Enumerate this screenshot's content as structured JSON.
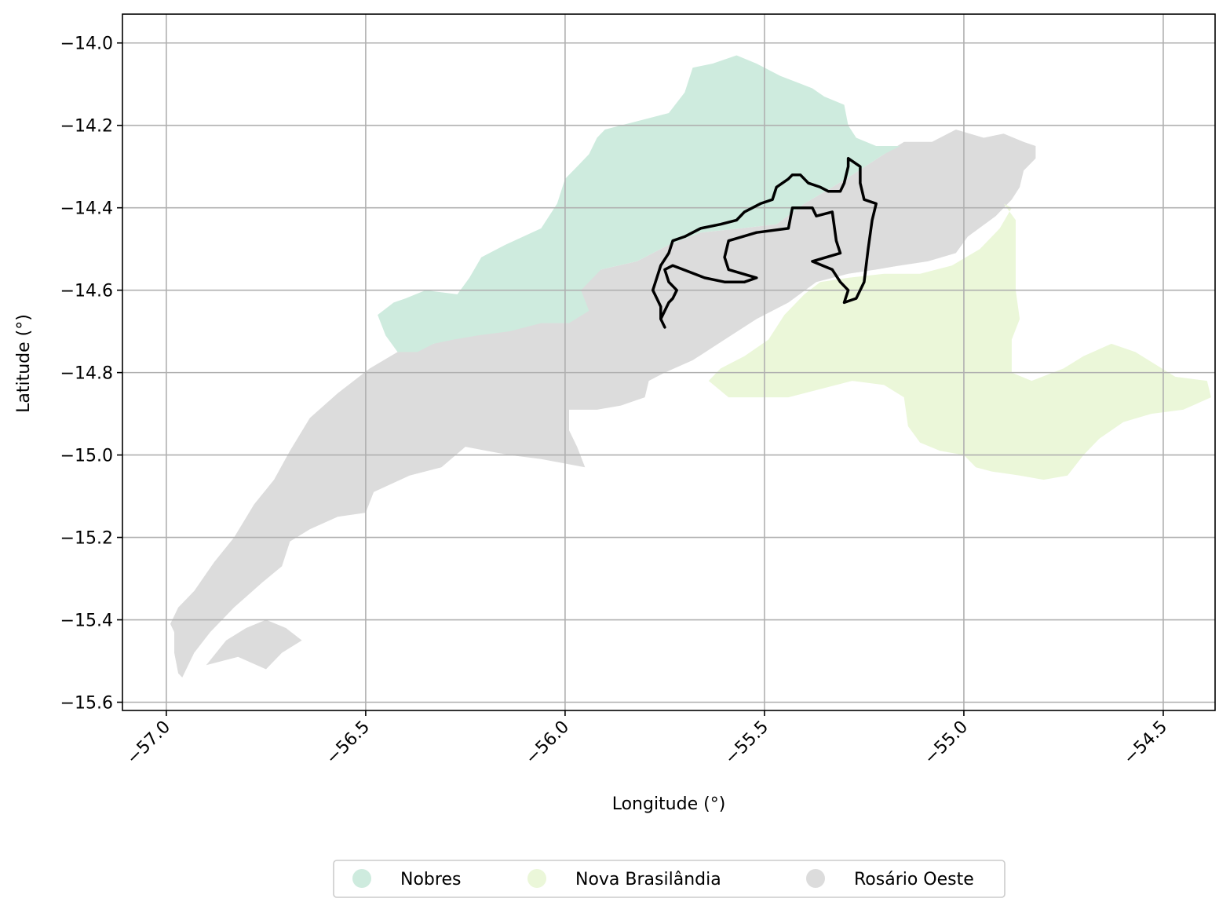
{
  "chart_data": {
    "type": "map",
    "xlabel": "Longitude (°)",
    "ylabel": "Latitude (°)",
    "xlim": [
      -57.11,
      -54.37
    ],
    "ylim": [
      -15.62,
      -13.93
    ],
    "grid": true,
    "legend_placement": "bottom-center",
    "x_ticks": [
      {
        "value": -57.0,
        "label": "−57.0"
      },
      {
        "value": -56.5,
        "label": "−56.5"
      },
      {
        "value": -56.0,
        "label": "−56.0"
      },
      {
        "value": -55.5,
        "label": "−55.5"
      },
      {
        "value": -55.0,
        "label": "−55.0"
      },
      {
        "value": -54.5,
        "label": "−54.5"
      }
    ],
    "y_ticks": [
      {
        "value": -14.0,
        "label": "−14.0"
      },
      {
        "value": -14.2,
        "label": "−14.2"
      },
      {
        "value": -14.4,
        "label": "−14.4"
      },
      {
        "value": -14.6,
        "label": "−14.6"
      },
      {
        "value": -14.8,
        "label": "−14.8"
      },
      {
        "value": -15.0,
        "label": "−15.0"
      },
      {
        "value": -15.2,
        "label": "−15.2"
      },
      {
        "value": -15.4,
        "label": "−15.4"
      },
      {
        "value": -15.6,
        "label": "−15.6"
      }
    ],
    "regions": [
      {
        "name": "Rosário Oeste",
        "color": "#dcdcdc",
        "polygons": [
          [
            [
              -56.97,
              -15.53
            ],
            [
              -56.98,
              -15.48
            ],
            [
              -56.98,
              -15.43
            ],
            [
              -56.99,
              -15.41
            ],
            [
              -56.97,
              -15.37
            ],
            [
              -56.93,
              -15.33
            ],
            [
              -56.88,
              -15.26
            ],
            [
              -56.83,
              -15.2
            ],
            [
              -56.78,
              -15.12
            ],
            [
              -56.73,
              -15.06
            ],
            [
              -56.69,
              -14.99
            ],
            [
              -56.64,
              -14.91
            ],
            [
              -56.57,
              -14.85
            ],
            [
              -56.49,
              -14.79
            ],
            [
              -56.42,
              -14.75
            ],
            [
              -56.33,
              -14.73
            ],
            [
              -56.27,
              -14.71
            ],
            [
              -56.25,
              -14.67
            ],
            [
              -56.22,
              -14.66
            ],
            [
              -56.16,
              -14.65
            ],
            [
              -56.11,
              -14.61
            ],
            [
              -56.03,
              -14.58
            ],
            [
              -55.91,
              -14.55
            ],
            [
              -55.82,
              -14.53
            ],
            [
              -55.74,
              -14.49
            ],
            [
              -55.66,
              -14.46
            ],
            [
              -55.56,
              -14.45
            ],
            [
              -55.47,
              -14.44
            ],
            [
              -55.4,
              -14.39
            ],
            [
              -55.33,
              -14.35
            ],
            [
              -55.28,
              -14.32
            ],
            [
              -55.2,
              -14.27
            ],
            [
              -55.15,
              -14.24
            ],
            [
              -55.08,
              -14.24
            ],
            [
              -55.02,
              -14.21
            ],
            [
              -54.95,
              -14.23
            ],
            [
              -54.9,
              -14.22
            ],
            [
              -54.85,
              -14.24
            ],
            [
              -54.82,
              -14.25
            ],
            [
              -54.82,
              -14.28
            ],
            [
              -54.85,
              -14.31
            ],
            [
              -54.86,
              -14.35
            ],
            [
              -54.88,
              -14.38
            ],
            [
              -54.92,
              -14.42
            ],
            [
              -54.99,
              -14.47
            ],
            [
              -55.02,
              -14.51
            ],
            [
              -55.09,
              -14.53
            ],
            [
              -55.16,
              -14.54
            ],
            [
              -55.22,
              -14.55
            ],
            [
              -55.29,
              -14.56
            ],
            [
              -55.37,
              -14.58
            ],
            [
              -55.44,
              -14.63
            ],
            [
              -55.52,
              -14.67
            ],
            [
              -55.6,
              -14.72
            ],
            [
              -55.68,
              -14.77
            ],
            [
              -55.75,
              -14.8
            ],
            [
              -55.79,
              -14.82
            ],
            [
              -55.8,
              -14.86
            ],
            [
              -55.86,
              -14.88
            ],
            [
              -55.92,
              -14.89
            ],
            [
              -55.99,
              -14.89
            ],
            [
              -55.99,
              -14.94
            ],
            [
              -55.97,
              -14.98
            ],
            [
              -55.95,
              -15.03
            ],
            [
              -56.06,
              -15.01
            ],
            [
              -56.14,
              -15.0
            ],
            [
              -56.25,
              -14.98
            ],
            [
              -56.31,
              -15.03
            ],
            [
              -56.39,
              -15.05
            ],
            [
              -56.48,
              -15.09
            ],
            [
              -56.5,
              -15.14
            ],
            [
              -56.57,
              -15.15
            ],
            [
              -56.64,
              -15.18
            ],
            [
              -56.69,
              -15.21
            ],
            [
              -56.71,
              -15.27
            ],
            [
              -56.76,
              -15.31
            ],
            [
              -56.83,
              -15.37
            ],
            [
              -56.89,
              -15.43
            ],
            [
              -56.93,
              -15.48
            ],
            [
              -56.96,
              -15.54
            ]
          ],
          [
            [
              -56.9,
              -15.51
            ],
            [
              -56.85,
              -15.45
            ],
            [
              -56.8,
              -15.42
            ],
            [
              -56.75,
              -15.4
            ],
            [
              -56.7,
              -15.42
            ],
            [
              -56.66,
              -15.45
            ],
            [
              -56.71,
              -15.48
            ],
            [
              -56.75,
              -15.52
            ],
            [
              -56.82,
              -15.49
            ]
          ]
        ]
      },
      {
        "name": "Nobres",
        "color": "#ceebde",
        "polygons": [
          [
            [
              -56.47,
              -14.66
            ],
            [
              -56.43,
              -14.63
            ],
            [
              -56.4,
              -14.62
            ],
            [
              -56.35,
              -14.6
            ],
            [
              -56.27,
              -14.61
            ],
            [
              -56.24,
              -14.57
            ],
            [
              -56.21,
              -14.52
            ],
            [
              -56.15,
              -14.49
            ],
            [
              -56.06,
              -14.45
            ],
            [
              -56.02,
              -14.39
            ],
            [
              -56.0,
              -14.33
            ],
            [
              -55.97,
              -14.3
            ],
            [
              -55.94,
              -14.27
            ],
            [
              -55.92,
              -14.23
            ],
            [
              -55.9,
              -14.21
            ],
            [
              -55.82,
              -14.19
            ],
            [
              -55.74,
              -14.17
            ],
            [
              -55.7,
              -14.12
            ],
            [
              -55.68,
              -14.06
            ],
            [
              -55.63,
              -14.05
            ],
            [
              -55.57,
              -14.03
            ],
            [
              -55.52,
              -14.05
            ],
            [
              -55.46,
              -14.08
            ],
            [
              -55.38,
              -14.11
            ],
            [
              -55.35,
              -14.13
            ],
            [
              -55.3,
              -14.15
            ],
            [
              -55.29,
              -14.2
            ],
            [
              -55.27,
              -14.23
            ],
            [
              -55.22,
              -14.25
            ],
            [
              -55.16,
              -14.25
            ],
            [
              -55.2,
              -14.27
            ],
            [
              -55.28,
              -14.32
            ],
            [
              -55.33,
              -14.35
            ],
            [
              -55.4,
              -14.39
            ],
            [
              -55.47,
              -14.44
            ],
            [
              -55.56,
              -14.45
            ],
            [
              -55.66,
              -14.46
            ],
            [
              -55.74,
              -14.49
            ],
            [
              -55.82,
              -14.53
            ],
            [
              -55.91,
              -14.55
            ],
            [
              -55.96,
              -14.6
            ],
            [
              -55.94,
              -14.65
            ],
            [
              -55.99,
              -14.68
            ],
            [
              -56.06,
              -14.68
            ],
            [
              -56.14,
              -14.7
            ],
            [
              -56.22,
              -14.71
            ],
            [
              -56.28,
              -14.72
            ],
            [
              -56.33,
              -14.73
            ],
            [
              -56.37,
              -14.75
            ],
            [
              -56.42,
              -14.75
            ],
            [
              -56.45,
              -14.71
            ]
          ]
        ]
      },
      {
        "name": "Nova Brasilândia",
        "color": "#ebf7d9",
        "polygons": [
          [
            [
              -55.64,
              -14.82
            ],
            [
              -55.61,
              -14.79
            ],
            [
              -55.55,
              -14.76
            ],
            [
              -55.49,
              -14.72
            ],
            [
              -55.45,
              -14.66
            ],
            [
              -55.4,
              -14.61
            ],
            [
              -55.36,
              -14.58
            ],
            [
              -55.29,
              -14.57
            ],
            [
              -55.2,
              -14.56
            ],
            [
              -55.11,
              -14.56
            ],
            [
              -55.03,
              -14.54
            ],
            [
              -54.96,
              -14.5
            ],
            [
              -54.91,
              -14.45
            ],
            [
              -54.88,
              -14.4
            ],
            [
              -54.9,
              -14.39
            ],
            [
              -54.87,
              -14.43
            ],
            [
              -54.87,
              -14.52
            ],
            [
              -54.87,
              -14.6
            ],
            [
              -54.86,
              -14.67
            ],
            [
              -54.88,
              -14.72
            ],
            [
              -54.88,
              -14.8
            ],
            [
              -54.83,
              -14.82
            ],
            [
              -54.75,
              -14.79
            ],
            [
              -54.7,
              -14.76
            ],
            [
              -54.63,
              -14.73
            ],
            [
              -54.57,
              -14.75
            ],
            [
              -54.52,
              -14.78
            ],
            [
              -54.47,
              -14.81
            ],
            [
              -54.39,
              -14.82
            ],
            [
              -54.38,
              -14.86
            ],
            [
              -54.45,
              -14.89
            ],
            [
              -54.53,
              -14.9
            ],
            [
              -54.6,
              -14.92
            ],
            [
              -54.66,
              -14.96
            ],
            [
              -54.7,
              -15.0
            ],
            [
              -54.74,
              -15.05
            ],
            [
              -54.8,
              -15.06
            ],
            [
              -54.86,
              -15.05
            ],
            [
              -54.93,
              -15.04
            ],
            [
              -54.97,
              -15.03
            ],
            [
              -55.0,
              -15.0
            ],
            [
              -55.06,
              -14.99
            ],
            [
              -55.11,
              -14.97
            ],
            [
              -55.14,
              -14.93
            ],
            [
              -55.15,
              -14.86
            ],
            [
              -55.2,
              -14.83
            ],
            [
              -55.28,
              -14.82
            ],
            [
              -55.36,
              -14.84
            ],
            [
              -55.44,
              -14.86
            ],
            [
              -55.52,
              -14.86
            ],
            [
              -55.59,
              -14.86
            ]
          ]
        ]
      }
    ],
    "outline_polygon": [
      [
        -55.75,
        -14.69
      ],
      [
        -55.76,
        -14.67
      ],
      [
        -55.75,
        -14.65
      ],
      [
        -55.74,
        -14.63
      ],
      [
        -55.73,
        -14.62
      ],
      [
        -55.72,
        -14.6
      ],
      [
        -55.74,
        -14.58
      ],
      [
        -55.75,
        -14.55
      ],
      [
        -55.73,
        -14.54
      ],
      [
        -55.65,
        -14.57
      ],
      [
        -55.6,
        -14.58
      ],
      [
        -55.55,
        -14.58
      ],
      [
        -55.52,
        -14.57
      ],
      [
        -55.59,
        -14.55
      ],
      [
        -55.6,
        -14.52
      ],
      [
        -55.59,
        -14.48
      ],
      [
        -55.52,
        -14.46
      ],
      [
        -55.44,
        -14.45
      ],
      [
        -55.43,
        -14.4
      ],
      [
        -55.38,
        -14.4
      ],
      [
        -55.37,
        -14.42
      ],
      [
        -55.33,
        -14.41
      ],
      [
        -55.32,
        -14.48
      ],
      [
        -55.31,
        -14.51
      ],
      [
        -55.38,
        -14.53
      ],
      [
        -55.33,
        -14.55
      ],
      [
        -55.31,
        -14.58
      ],
      [
        -55.29,
        -14.6
      ],
      [
        -55.3,
        -14.63
      ],
      [
        -55.27,
        -14.62
      ],
      [
        -55.25,
        -14.58
      ],
      [
        -55.24,
        -14.5
      ],
      [
        -55.23,
        -14.43
      ],
      [
        -55.22,
        -14.39
      ],
      [
        -55.25,
        -14.38
      ],
      [
        -55.26,
        -14.34
      ],
      [
        -55.26,
        -14.3
      ],
      [
        -55.29,
        -14.28
      ],
      [
        -55.29,
        -14.3
      ],
      [
        -55.3,
        -14.34
      ],
      [
        -55.31,
        -14.36
      ],
      [
        -55.34,
        -14.36
      ],
      [
        -55.36,
        -14.35
      ],
      [
        -55.39,
        -14.34
      ],
      [
        -55.41,
        -14.32
      ],
      [
        -55.43,
        -14.32
      ],
      [
        -55.44,
        -14.33
      ],
      [
        -55.47,
        -14.35
      ],
      [
        -55.48,
        -14.38
      ],
      [
        -55.51,
        -14.39
      ],
      [
        -55.53,
        -14.4
      ],
      [
        -55.55,
        -14.41
      ],
      [
        -55.57,
        -14.43
      ],
      [
        -55.61,
        -14.44
      ],
      [
        -55.66,
        -14.45
      ],
      [
        -55.7,
        -14.47
      ],
      [
        -55.73,
        -14.48
      ],
      [
        -55.74,
        -14.51
      ],
      [
        -55.76,
        -14.54
      ],
      [
        -55.77,
        -14.57
      ],
      [
        -55.78,
        -14.6
      ],
      [
        -55.77,
        -14.62
      ],
      [
        -55.76,
        -14.64
      ],
      [
        -55.76,
        -14.67
      ]
    ],
    "legend": [
      {
        "label": "Nobres",
        "color": "#ceebde"
      },
      {
        "label": "Nova Brasilândia",
        "color": "#ebf7d9"
      },
      {
        "label": "Rosário Oeste",
        "color": "#dcdcdc"
      }
    ]
  }
}
